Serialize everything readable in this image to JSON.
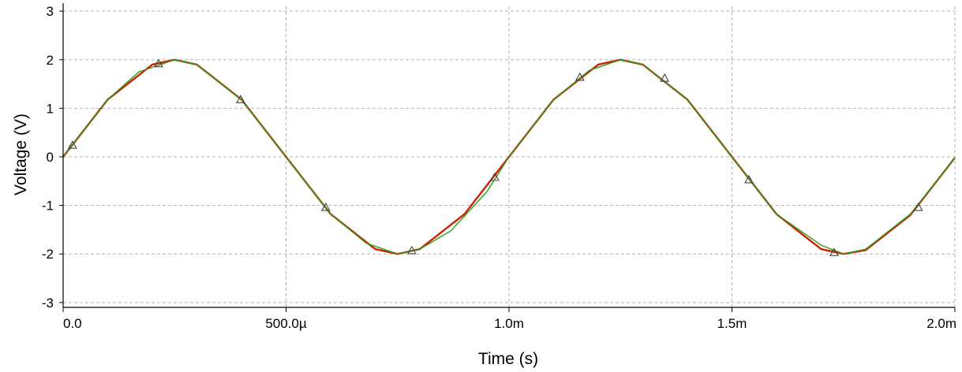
{
  "chart_data": {
    "type": "line",
    "title": "",
    "xlabel": "Time (s)",
    "ylabel": "Voltage (V)",
    "xlim": [
      0,
      0.002
    ],
    "ylim": [
      -3.1,
      3.1
    ],
    "grid": true,
    "x_ticks": [
      {
        "value": 0.0,
        "label": "0.0"
      },
      {
        "value": 0.0005,
        "label": "500.0µ"
      },
      {
        "value": 0.001,
        "label": "1.0m"
      },
      {
        "value": 0.0015,
        "label": "1.5m"
      },
      {
        "value": 0.002,
        "label": "2.0m"
      }
    ],
    "y_ticks": [
      {
        "value": 3,
        "label": "3"
      },
      {
        "value": 2,
        "label": "2"
      },
      {
        "value": 1,
        "label": "1"
      },
      {
        "value": 0,
        "label": "0"
      },
      {
        "value": -1,
        "label": "-1"
      },
      {
        "value": -2,
        "label": "-2"
      },
      {
        "value": -3,
        "label": "-3"
      }
    ],
    "series": [
      {
        "color": "#cc2200",
        "x": [
          0.0,
          0.0001,
          0.0002,
          0.00025,
          0.0003,
          0.0004,
          0.0005,
          0.0006,
          0.0007,
          0.00075,
          0.0008,
          0.0009,
          0.001,
          0.0011,
          0.0012,
          0.00125,
          0.0013,
          0.0014,
          0.0015,
          0.0016,
          0.0017,
          0.00175,
          0.0018,
          0.0019,
          0.002
        ],
        "y": [
          0.0,
          1.18,
          1.9,
          2.0,
          1.9,
          1.18,
          0.0,
          -1.18,
          -1.9,
          -2.0,
          -1.9,
          -1.18,
          0.0,
          1.18,
          1.9,
          2.0,
          1.9,
          1.18,
          0.0,
          -1.18,
          -1.9,
          -2.0,
          -1.92,
          -1.2,
          -0.02
        ]
      },
      {
        "color": "#2e9c1f",
        "x": [
          0.0,
          0.0001,
          0.00017,
          0.00025,
          0.0003,
          0.0004,
          0.0005,
          0.0006,
          0.00068,
          0.00075,
          0.0008,
          0.00087,
          0.00095,
          0.001,
          0.0011,
          0.00118,
          0.00125,
          0.0013,
          0.0014,
          0.0015,
          0.0016,
          0.0017,
          0.00175,
          0.0018,
          0.0019,
          0.002
        ],
        "y": [
          0.0,
          1.18,
          1.75,
          2.0,
          1.9,
          1.18,
          0.0,
          -1.18,
          -1.78,
          -2.0,
          -1.9,
          -1.52,
          -0.72,
          0.0,
          1.18,
          1.78,
          2.0,
          1.9,
          1.18,
          0.0,
          -1.18,
          -1.82,
          -2.0,
          -1.9,
          -1.18,
          -0.02
        ]
      }
    ],
    "markers": {
      "shape": "triangle",
      "x": [
        2.1e-05,
        0.000214,
        0.000398,
        0.000589,
        0.000782,
        0.000968,
        0.001159,
        0.001349,
        0.001538,
        0.001729,
        0.001918
      ],
      "y": [
        0.24,
        1.92,
        1.18,
        -1.04,
        -1.93,
        -0.42,
        1.64,
        1.62,
        -0.47,
        -1.97,
        -1.04
      ]
    }
  }
}
